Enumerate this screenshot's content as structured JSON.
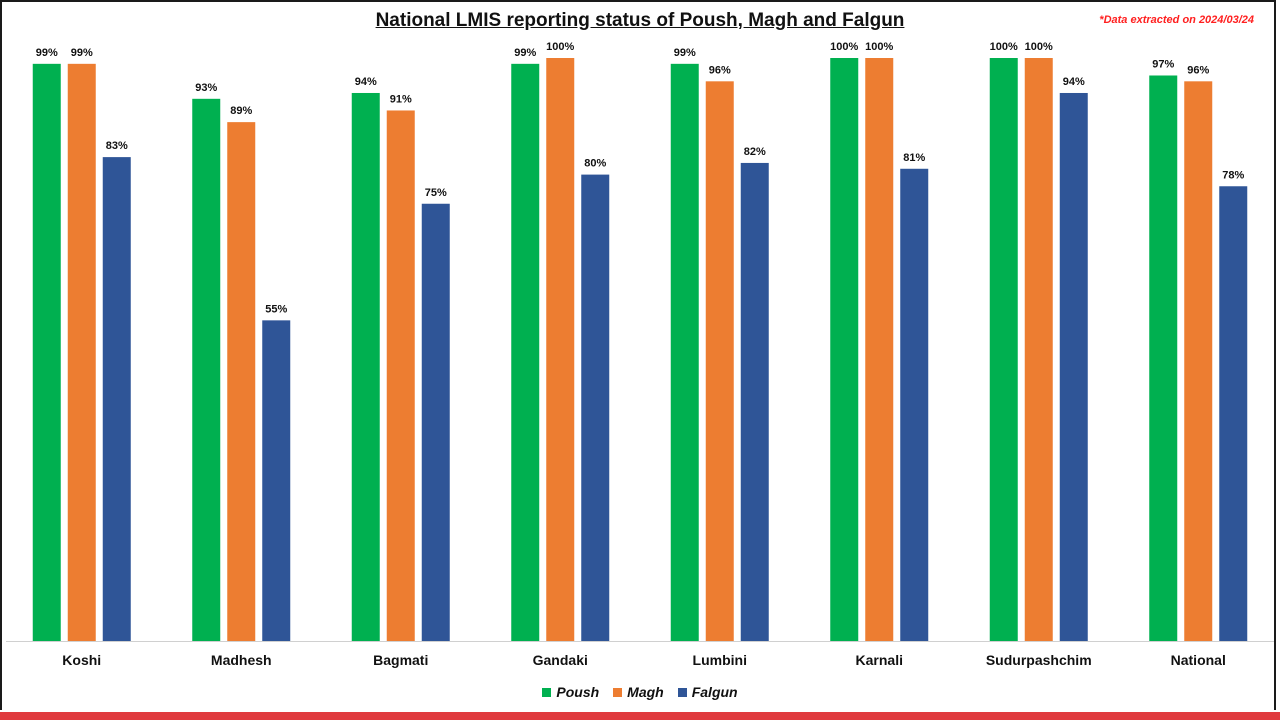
{
  "title": "National LMIS reporting status of Poush, Magh and Falgun",
  "note": "*Data extracted on 2024/03/24",
  "chart_data": {
    "type": "bar",
    "title": "National LMIS reporting status of Poush, Magh and Falgun",
    "xlabel": "",
    "ylabel": "",
    "ylim": [
      0,
      100
    ],
    "grid": false,
    "legend_position": "bottom",
    "categories": [
      "Koshi",
      "Madhesh",
      "Bagmati",
      "Gandaki",
      "Lumbini",
      "Karnali",
      "Sudurpashchim",
      "National"
    ],
    "series": [
      {
        "name": "Poush",
        "color": "#00b050",
        "values": [
          99,
          93,
          94,
          99,
          99,
          100,
          100,
          97
        ],
        "labels": [
          "99%",
          "93%",
          "94%",
          "99%",
          "99%",
          "100%",
          "100%",
          "97%"
        ]
      },
      {
        "name": "Magh",
        "color": "#ed7d31",
        "values": [
          99,
          89,
          91,
          100,
          96,
          100,
          100,
          96
        ],
        "labels": [
          "99%",
          "89%",
          "91%",
          "100%",
          "96%",
          "100%",
          "100%",
          "96%"
        ]
      },
      {
        "name": "Falgun",
        "color": "#2f5597",
        "values": [
          83,
          55,
          75,
          80,
          82,
          81,
          94,
          78
        ],
        "labels": [
          "83%",
          "55%",
          "75%",
          "80%",
          "82%",
          "81%",
          "94%",
          "78%"
        ]
      }
    ]
  }
}
